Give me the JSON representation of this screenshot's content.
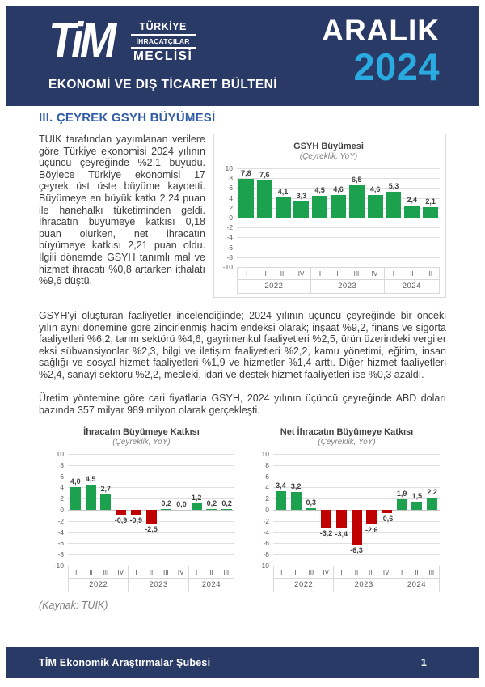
{
  "colors": {
    "navy": "#2A3A66",
    "cyan": "#29ABE2",
    "section_blue": "#2F5BA7",
    "green": "#1CA24F",
    "red": "#C00000",
    "grid": "#DEDEDE",
    "body_text": "#3D3D3D"
  },
  "header": {
    "logo_text": "TiM",
    "org_lines": {
      "line1": "TÜRKİYE",
      "line2": "İHRACATÇILAR",
      "line3": "MECLİSİ"
    },
    "bulletin_title": "EKONOMİ VE DIŞ TİCARET BÜLTENİ",
    "issue_month": "ARALIK",
    "issue_year": "2024"
  },
  "section": {
    "title": "III. ÇEYREK GSYH BÜYÜMESİ"
  },
  "paragraphs": [
    "TÜİK tarafından yayımlanan verilere göre Türkiye ekonomisi 2024 yılının üçüncü çeyreğinde %2,1 büyüdü. Böylece Türkiye ekonomisi 17 çeyrek üst üste büyüme kaydetti. Büyümeye en büyük katkı 2,24 puan ile hanehalkı tüketiminden geldi. İhracatın büyümeye katkısı 0,18 puan olurken, net ihracatın büyümeye katkısı 2,21 puan oldu. İlgili dönemde GSYH tanımlı mal ve hizmet ihracatı %0,8 artarken ithalatı %9,6 düştü.",
    "GSYH'yi oluşturan faaliyetler incelendiğinde; 2024 yılının üçüncü çeyreğinde bir önceki yılın aynı dönemine göre zincirlenmiş hacim endeksi olarak; inşaat %9,2, finans ve sigorta faaliyetleri %6,2, tarım sektörü %4,6, gayrimenkul faaliyetleri %2,5, ürün üzerindeki vergiler eksi sübvansiyonlar %2,3, bilgi ve iletişim faaliyetleri %2,2, kamu yönetimi, eğitim, insan sağlığı ve sosyal hizmet faaliyetleri %1,9 ve hizmetler %1,4 arttı. Diğer hizmet faaliyetleri %2,4, sanayi sektörü %2,2, mesleki, idari ve destek hizmet faaliyetleri ise %0,3 azaldı.",
    "Üretim yöntemine göre cari fiyatlarla GSYH, 2024 yılının üçüncü çeyreğinde ABD doları bazında 357 milyar 989 milyon olarak gerçekleşti."
  ],
  "source_note": "(Kaynak: TÜİK)",
  "footer": {
    "left": "TİM Ekonomik Araştırmalar Şubesi",
    "page": "1"
  },
  "chart_data": [
    {
      "type": "bar",
      "title": "GSYH Büyümesi",
      "subtitle": "(Çeyreklik, YoY)",
      "groups": [
        {
          "year": "2022",
          "quarters": [
            "I",
            "II",
            "III",
            "IV"
          ]
        },
        {
          "year": "2023",
          "quarters": [
            "I",
            "II",
            "III",
            "IV"
          ]
        },
        {
          "year": "2024",
          "quarters": [
            "I",
            "II",
            "III"
          ]
        }
      ],
      "values": [
        7.8,
        7.6,
        4.1,
        3.3,
        4.5,
        4.6,
        6.5,
        4.6,
        5.3,
        2.4,
        2.1
      ],
      "ylim": [
        -10,
        10
      ],
      "ystep": 2,
      "grid": true,
      "legend": "none",
      "positive_color": "#1CA24F",
      "negative_color": "#C00000",
      "value_labels": [
        "7,8",
        "7,6",
        "4,1",
        "3,3",
        "4,5",
        "4,6",
        "6,5",
        "4,6",
        "5,3",
        "2,4",
        "2,1"
      ]
    },
    {
      "type": "bar",
      "title": "İhracatın Büyümeye Katkısı",
      "subtitle": "(Çeyreklik, YoY)",
      "groups": [
        {
          "year": "2022",
          "quarters": [
            "I",
            "II",
            "III",
            "IV"
          ]
        },
        {
          "year": "2023",
          "quarters": [
            "I",
            "II",
            "III",
            "IV"
          ]
        },
        {
          "year": "2024",
          "quarters": [
            "I",
            "II",
            "III"
          ]
        }
      ],
      "values": [
        4.0,
        4.5,
        2.7,
        -0.9,
        -0.9,
        -2.5,
        0.2,
        0.0,
        1.2,
        0.2,
        0.2
      ],
      "ylim": [
        -10,
        10
      ],
      "ystep": 2,
      "grid": true,
      "legend": "none",
      "positive_color": "#1CA24F",
      "negative_color": "#C00000",
      "value_labels": [
        "4,0",
        "4,5",
        "2,7",
        "-0,9",
        "-0,9",
        "-2,5",
        "0,2",
        "0,0",
        "1,2",
        "0,2",
        "0,2"
      ]
    },
    {
      "type": "bar",
      "title": "Net İhracatın Büyümeye Katkısı",
      "subtitle": "(Çeyreklik, YoY)",
      "groups": [
        {
          "year": "2022",
          "quarters": [
            "I",
            "II",
            "III",
            "IV"
          ]
        },
        {
          "year": "2023",
          "quarters": [
            "I",
            "II",
            "III",
            "IV"
          ]
        },
        {
          "year": "2024",
          "quarters": [
            "I",
            "II",
            "III"
          ]
        }
      ],
      "values": [
        3.4,
        3.2,
        0.3,
        -3.2,
        -3.4,
        -6.3,
        -2.6,
        -0.6,
        1.9,
        1.5,
        2.2
      ],
      "ylim": [
        -10,
        10
      ],
      "ystep": 2,
      "grid": true,
      "legend": "none",
      "positive_color": "#1CA24F",
      "negative_color": "#C00000",
      "value_labels": [
        "3,4",
        "3,2",
        "0,3",
        "-3,2",
        "-3,4",
        "-6,3",
        "-2,6",
        "-0,6",
        "1,9",
        "1,5",
        "2,2"
      ]
    }
  ]
}
